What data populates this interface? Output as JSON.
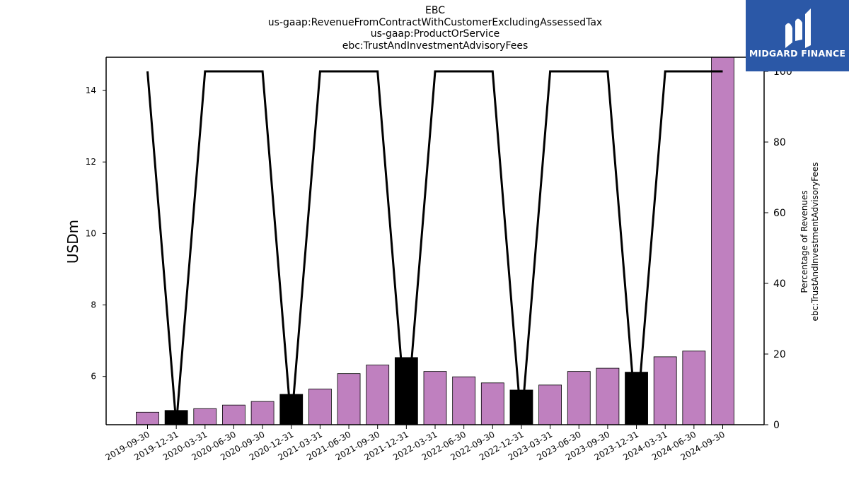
{
  "logo": {
    "text": "MIDGARD FINANCE",
    "color": "#2b58a7"
  },
  "chart_data": {
    "type": "bar",
    "title_lines": [
      "EBC",
      "us-gaap:RevenueFromContractWithCustomerExcludingAssessedTax",
      "us-gaap:ProductOrService",
      "ebc:TrustAndInvestmentAdvisoryFees"
    ],
    "ylabel": "USDm",
    "ylabel_right": [
      "Percentage of Revenues",
      "ebc:TrustAndInvestmentAdvisoryFees"
    ],
    "ylim": [
      4.65,
      14.93
    ],
    "ylim_right": [
      0,
      104
    ],
    "yticks": [
      6,
      8,
      10,
      12,
      14
    ],
    "yticks_right": [
      0,
      20,
      40,
      60,
      80,
      100
    ],
    "categories": [
      "2019-09-30",
      "2019-12-31",
      "2020-03-31",
      "2020-06-30",
      "2020-09-30",
      "2020-12-31",
      "2021-03-31",
      "2021-06-30",
      "2021-09-30",
      "2021-12-31",
      "2022-03-31",
      "2022-06-30",
      "2022-09-30",
      "2022-12-31",
      "2023-03-31",
      "2023-06-30",
      "2023-09-30",
      "2023-12-31",
      "2024-03-31",
      "2024-06-30",
      "2024-09-30"
    ],
    "series": [
      {
        "type": "bar",
        "values": [
          5.0,
          5.05,
          5.1,
          5.2,
          5.3,
          5.5,
          5.65,
          6.08,
          6.32,
          6.53,
          6.14,
          5.99,
          5.82,
          5.62,
          5.76,
          6.14,
          6.23,
          6.12,
          6.55,
          6.71,
          14.93
        ],
        "colors": [
          "#bf80bf",
          "#000000",
          "#bf80bf",
          "#bf80bf",
          "#bf80bf",
          "#000000",
          "#bf80bf",
          "#bf80bf",
          "#bf80bf",
          "#000000",
          "#bf80bf",
          "#bf80bf",
          "#bf80bf",
          "#000000",
          "#bf80bf",
          "#bf80bf",
          "#bf80bf",
          "#000000",
          "#bf80bf",
          "#bf80bf",
          "#bf80bf"
        ]
      },
      {
        "type": "line",
        "axis": "right",
        "color": "#000000",
        "values": [
          100,
          0,
          100,
          100,
          100,
          0,
          100,
          100,
          100,
          0,
          100,
          100,
          100,
          0,
          100,
          100,
          100,
          0,
          100,
          100,
          100
        ]
      }
    ],
    "grid": false,
    "legend": "none"
  }
}
